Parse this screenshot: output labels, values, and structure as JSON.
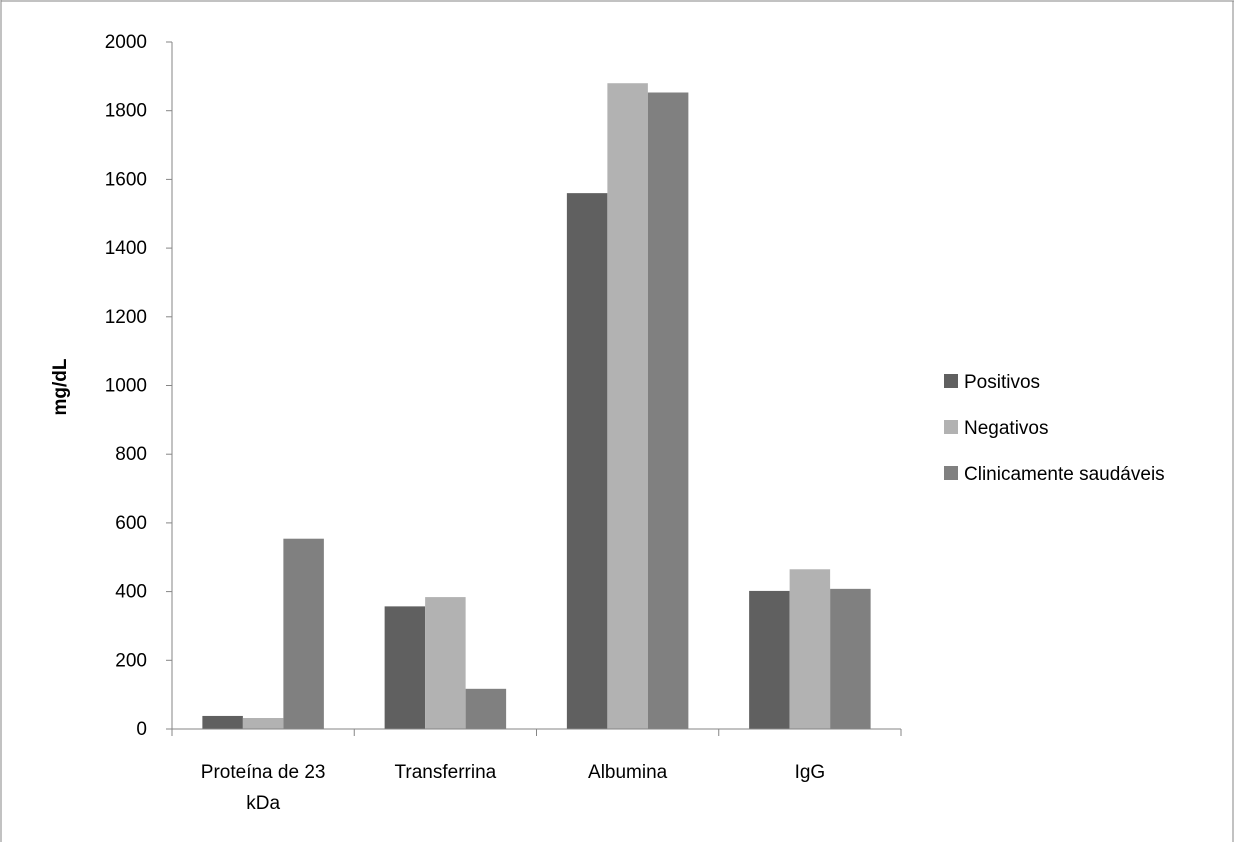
{
  "chart_data": {
    "type": "bar",
    "title": "",
    "xlabel": "",
    "ylabel": "mg/dL",
    "categories": [
      "Proteína de 23 kDa",
      "Transferrina",
      "Albumina",
      "IgG"
    ],
    "category_lines": [
      [
        "Proteína de 23",
        "kDa"
      ],
      [
        "Transferrina"
      ],
      [
        "Albumina"
      ],
      [
        "IgG"
      ]
    ],
    "ylim": [
      0,
      2000
    ],
    "yticks": [
      0,
      200,
      400,
      600,
      800,
      1000,
      1200,
      1400,
      1600,
      1800,
      2000
    ],
    "grid": false,
    "legend_position": "right",
    "series": [
      {
        "name": "Positivos",
        "color": "#606060",
        "values": [
          38,
          357,
          1560,
          402
        ]
      },
      {
        "name": "Negativos",
        "color": "#b2b2b2",
        "values": [
          32,
          384,
          1880,
          465
        ]
      },
      {
        "name": "Clinicamente saudáveis",
        "color": "#808080",
        "values": [
          554,
          117,
          1853,
          408
        ]
      }
    ]
  }
}
